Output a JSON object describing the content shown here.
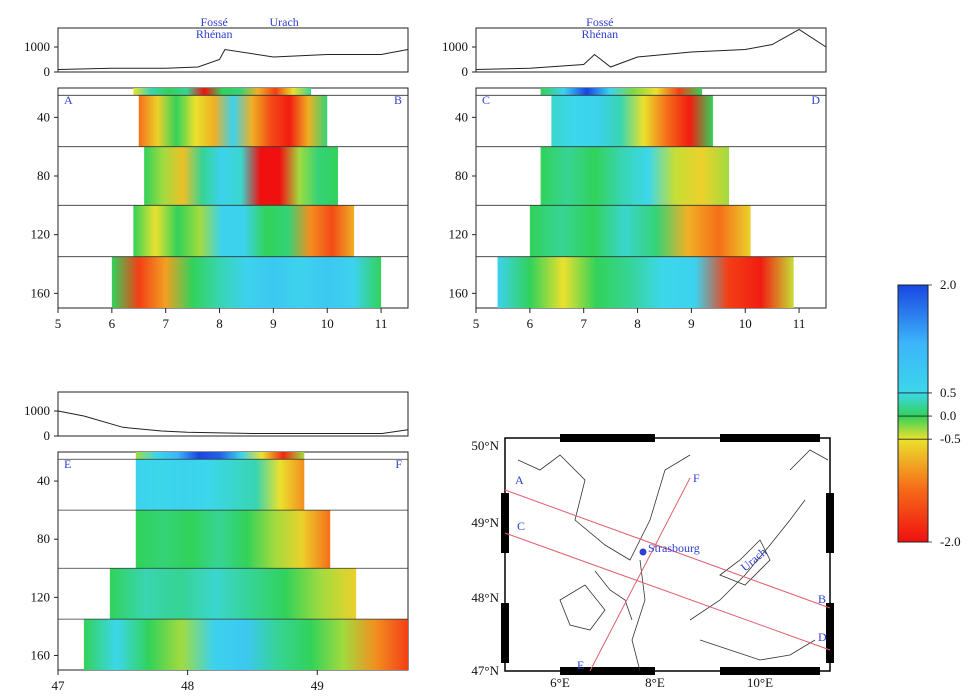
{
  "panels": [
    {
      "id": "AB",
      "left_label": "A",
      "right_label": "B",
      "x_ticks": [
        5,
        6,
        7,
        8,
        9,
        10,
        11
      ],
      "x_range": [
        5,
        11.5
      ],
      "depth_ticks": [
        40,
        80,
        120,
        160
      ],
      "elev_ticks": [
        0,
        1000
      ],
      "annotations": [
        {
          "text": "Fossé",
          "x": 7.9
        },
        {
          "text": "Rhénan",
          "x": 7.9
        },
        {
          "text": "Urach",
          "x": 9.2
        }
      ]
    },
    {
      "id": "CD",
      "left_label": "C",
      "right_label": "D",
      "x_ticks": [
        5,
        6,
        7,
        8,
        9,
        10,
        11
      ],
      "x_range": [
        5,
        11.5
      ],
      "depth_ticks": [
        40,
        80,
        120,
        160
      ],
      "elev_ticks": [
        0,
        1000
      ],
      "annotations": [
        {
          "text": "Fossé",
          "x": 7.3
        },
        {
          "text": "Rhénan",
          "x": 7.3
        }
      ]
    },
    {
      "id": "EF",
      "left_label": "E",
      "right_label": "F",
      "x_ticks": [
        47,
        48,
        49
      ],
      "x_range": [
        47,
        49.7
      ],
      "depth_ticks": [
        40,
        80,
        120,
        160
      ],
      "elev_ticks": [
        0,
        1000
      ],
      "annotations": []
    }
  ],
  "colorbar": {
    "ticks": [
      "2.0",
      "0.5",
      "0.0",
      "-0.5",
      "-2.0"
    ],
    "colors": [
      "#2050e0",
      "#30c8ff",
      "#30d060",
      "#e8e030",
      "#f08020",
      "#f01010"
    ]
  },
  "map": {
    "lat_labels": [
      "50°N",
      "49°N",
      "48°N",
      "47°N"
    ],
    "lon_labels": [
      "6°E",
      "8°E",
      "10°E"
    ],
    "profile_labels": [
      "A",
      "B",
      "C",
      "D",
      "E",
      "F"
    ],
    "city": "Strasbourg",
    "region": "Urach"
  },
  "chart_data": {
    "type": "heatmap",
    "title": "",
    "value_scale": [
      -2.0,
      2.0
    ],
    "colorbar_ticks": [
      2.0,
      0.5,
      0.0,
      -0.5,
      -2.0
    ],
    "profiles": [
      {
        "name": "A-B",
        "x_unit": "longitude",
        "elevation_profile": {
          "x": [
            5,
            6,
            7,
            7.6,
            8,
            8.1,
            9,
            9.5,
            10,
            11,
            11.5
          ],
          "elev": [
            100,
            150,
            150,
            200,
            500,
            900,
            600,
            650,
            700,
            700,
            900
          ]
        },
        "layers": [
          {
            "depth": [
              20,
              25
            ],
            "x_range": [
              6.4,
              9.7
            ],
            "values": [
              -0.5,
              0.3,
              0.0,
              0.2,
              -2.0,
              0.0,
              0.1,
              -0.8,
              -1.6,
              -0.5,
              0.2
            ]
          },
          {
            "depth": [
              25,
              60
            ],
            "x_range": [
              6.5,
              10.0
            ],
            "values": [
              -1.2,
              -0.6,
              0.0,
              -0.5,
              -0.8,
              0.6,
              -0.8,
              -1.5,
              -1.9,
              -0.8,
              0.1
            ]
          },
          {
            "depth": [
              60,
              100
            ],
            "x_range": [
              6.6,
              10.2
            ],
            "values": [
              0.0,
              -0.3,
              -0.7,
              0.2,
              0.6,
              0.4,
              -2.0,
              -2.0,
              -0.3,
              0.1,
              0.0
            ]
          },
          {
            "depth": [
              100,
              135
            ],
            "x_range": [
              6.4,
              10.5
            ],
            "values": [
              0.0,
              -0.5,
              0.0,
              -0.3,
              0.6,
              0.6,
              0.0,
              0.1,
              -1.0,
              -1.5,
              -0.8
            ]
          },
          {
            "depth": [
              135,
              170
            ],
            "x_range": [
              6.0,
              11.0
            ],
            "values": [
              0.0,
              -1.6,
              -0.9,
              0.0,
              0.3,
              0.6,
              0.8,
              0.6,
              0.8,
              0.6,
              0.0
            ]
          }
        ]
      },
      {
        "name": "C-D",
        "x_unit": "longitude",
        "elevation_profile": {
          "x": [
            5,
            6,
            7,
            7.2,
            7.5,
            8,
            9,
            10,
            10.5,
            11,
            11.5
          ],
          "elev": [
            100,
            150,
            300,
            700,
            200,
            600,
            800,
            900,
            1100,
            1700,
            1000
          ]
        },
        "layers": [
          {
            "depth": [
              20,
              25
            ],
            "x_range": [
              6.2,
              9.2
            ],
            "values": [
              0.0,
              0.6,
              2.0,
              0.6,
              -0.2,
              -0.5,
              -1.6,
              0.0
            ]
          },
          {
            "depth": [
              25,
              60
            ],
            "x_range": [
              6.4,
              9.4
            ],
            "values": [
              0.4,
              0.5,
              0.6,
              0.3,
              -0.5,
              -1.2,
              -1.9,
              0.0
            ]
          },
          {
            "depth": [
              60,
              100
            ],
            "x_range": [
              6.2,
              9.7
            ],
            "values": [
              0.0,
              0.2,
              0.0,
              0.3,
              0.5,
              -0.4,
              -0.6,
              -0.3
            ]
          },
          {
            "depth": [
              100,
              135
            ],
            "x_range": [
              6.0,
              10.1
            ],
            "values": [
              0.0,
              0.2,
              0.0,
              0.4,
              0.1,
              -0.8,
              -1.2,
              -0.6
            ]
          },
          {
            "depth": [
              135,
              170
            ],
            "x_range": [
              5.4,
              10.9
            ],
            "values": [
              0.6,
              0.0,
              -0.5,
              0.0,
              0.2,
              0.5,
              0.6,
              -1.6,
              -1.9,
              -0.4
            ]
          }
        ]
      },
      {
        "name": "E-F",
        "x_unit": "latitude",
        "elevation_profile": {
          "x": [
            47,
            47.2,
            47.5,
            47.8,
            48.0,
            48.5,
            49.0,
            49.5,
            49.7
          ],
          "elev": [
            1000,
            800,
            350,
            200,
            150,
            100,
            100,
            100,
            250
          ]
        },
        "layers": [
          {
            "depth": [
              20,
              25
            ],
            "x_range": [
              47.6,
              48.9
            ],
            "values": [
              -0.3,
              0.5,
              1.2,
              2.0,
              1.8,
              0.6,
              -0.5,
              -1.8,
              -0.3
            ]
          },
          {
            "depth": [
              25,
              60
            ],
            "x_range": [
              47.6,
              48.9
            ],
            "values": [
              0.6,
              0.5,
              0.6,
              0.5,
              0.4,
              0.3,
              -0.5,
              -1.0
            ]
          },
          {
            "depth": [
              60,
              100
            ],
            "x_range": [
              47.6,
              49.1
            ],
            "values": [
              0.0,
              0.1,
              0.0,
              0.2,
              0.0,
              -0.3,
              -0.6,
              -1.2
            ]
          },
          {
            "depth": [
              100,
              135
            ],
            "x_range": [
              47.4,
              49.3
            ],
            "values": [
              0.0,
              0.3,
              0.2,
              0.4,
              0.2,
              0.0,
              -0.3,
              -0.6
            ]
          },
          {
            "depth": [
              135,
              170
            ],
            "x_range": [
              47.2,
              49.7
            ],
            "values": [
              0.0,
              0.5,
              0.0,
              -0.3,
              0.6,
              0.8,
              0.2,
              0.0,
              -0.3,
              -1.0,
              -1.6
            ]
          }
        ]
      }
    ]
  }
}
